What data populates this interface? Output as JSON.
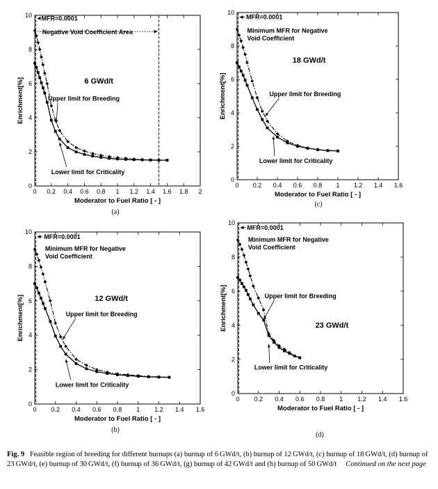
{
  "figure": {
    "caption_label": "Fig. 9",
    "caption_text": "Feasible region of breeding for different burnups (a) burnup of 6 GWd/t, (b) burnup of 12 GWd/t, (c) burnup of 18 GWd/t, (d) burnup of 23 GWd/t, (e) burnup of 30 GWd/t, (f) burnup of 36 GWd/t, (g) burnup of 42 GWd/t and (h) burnup of 50 GWd/t",
    "caption_continued": "Continued on the next page"
  },
  "chart_data": [
    {
      "id": "a",
      "type": "line",
      "panel_label": "(a)",
      "xlabel": "Moderator to Fuel Ratio [ - ]",
      "ylabel": "Enrichment[%]",
      "xlim": [
        0,
        2
      ],
      "ylim": [
        0,
        10
      ],
      "xticks": [
        "0",
        "0.2",
        "0.4",
        "0.6",
        "0.8",
        "1",
        "1.2",
        "1.4",
        "1.6",
        "1.8",
        "2"
      ],
      "yticks": [
        "0",
        "2",
        "4",
        "6",
        "8",
        "10"
      ],
      "burnup_label": "6 GWd/t",
      "mfr_label": "MFR=0.0001",
      "note_lines": [
        "Negative Void Coefficient Area"
      ],
      "right_boundary_x": 1.5,
      "upper_label": "Upper limit for Breeding",
      "lower_label": "Lower limit for Criticality",
      "series": [
        {
          "role": "upper",
          "x": [
            0.0001,
            0.02,
            0.04,
            0.06,
            0.08,
            0.1,
            0.12,
            0.15,
            0.2,
            0.25,
            0.3,
            0.4,
            0.5,
            0.6,
            0.7,
            0.8,
            0.9,
            1.0,
            1.1,
            1.2,
            1.3,
            1.4,
            1.5,
            1.6
          ],
          "y": [
            9.1,
            8.8,
            8.4,
            8.0,
            7.55,
            7.1,
            6.6,
            6.0,
            4.7,
            3.85,
            3.25,
            2.6,
            2.25,
            2.05,
            1.9,
            1.8,
            1.72,
            1.66,
            1.62,
            1.58,
            1.55,
            1.53,
            1.52,
            1.51
          ]
        },
        {
          "role": "lower",
          "x": [
            0.0001,
            0.02,
            0.04,
            0.06,
            0.08,
            0.1,
            0.12,
            0.15,
            0.2,
            0.25,
            0.3,
            0.4,
            0.5,
            0.6,
            0.7,
            0.8,
            0.9,
            1.0,
            1.1,
            1.2,
            1.3,
            1.4,
            1.5,
            1.6
          ],
          "y": [
            7.2,
            6.95,
            6.65,
            6.35,
            6.05,
            5.75,
            5.45,
            4.9,
            3.85,
            3.2,
            2.75,
            2.25,
            2.0,
            1.85,
            1.75,
            1.68,
            1.62,
            1.58,
            1.56,
            1.54,
            1.53,
            1.52,
            1.51,
            1.51
          ]
        }
      ]
    },
    {
      "id": "c",
      "type": "line",
      "panel_label": "(c)",
      "xlabel": "Moderator to Fuel Ratio [ - ]",
      "ylabel": "Enrichment[%]",
      "xlim": [
        0,
        1.6
      ],
      "ylim": [
        0,
        10
      ],
      "xticks": [
        "0",
        "0.2",
        "0.4",
        "0.6",
        "0.8",
        "1",
        "1.2",
        "1.4",
        "1.6"
      ],
      "yticks": [
        "0",
        "2",
        "4",
        "6",
        "8",
        "10"
      ],
      "burnup_label": "18 GWd/t",
      "mfr_label": "MFR=0.0001",
      "note_lines": [
        "Minimum MFR for Negative",
        "Void Coefficient"
      ],
      "upper_label": "Upper limit for Breeding",
      "lower_label": "Lower limit for Criticality",
      "series": [
        {
          "role": "upper",
          "x": [
            0.0001,
            0.02,
            0.04,
            0.06,
            0.08,
            0.1,
            0.15,
            0.2,
            0.25,
            0.3,
            0.4,
            0.5,
            0.6,
            0.7,
            0.8,
            0.9,
            1.0
          ],
          "y": [
            9.0,
            8.65,
            8.3,
            7.9,
            7.5,
            7.0,
            5.9,
            4.9,
            4.1,
            3.5,
            2.75,
            2.3,
            2.05,
            1.9,
            1.8,
            1.75,
            1.72
          ]
        },
        {
          "role": "lower",
          "x": [
            0.0001,
            0.02,
            0.04,
            0.06,
            0.08,
            0.1,
            0.15,
            0.2,
            0.25,
            0.3,
            0.4,
            0.5,
            0.6,
            0.7,
            0.8,
            0.9,
            1.0
          ],
          "y": [
            7.0,
            6.75,
            6.5,
            6.25,
            5.95,
            5.65,
            4.9,
            4.2,
            3.6,
            3.1,
            2.55,
            2.2,
            2.0,
            1.88,
            1.8,
            1.74,
            1.72
          ]
        }
      ]
    },
    {
      "id": "b",
      "type": "line",
      "panel_label": "(b)",
      "xlabel": "Moderator to Fuel Ratio [ - ]",
      "ylabel": "Enrichment[%]",
      "xlim": [
        0,
        1.6
      ],
      "ylim": [
        0,
        10
      ],
      "xticks": [
        "0",
        "0.2",
        "0.4",
        "0.6",
        "0.8",
        "1",
        "1.2",
        "1.4",
        "1.6"
      ],
      "yticks": [
        "0",
        "2",
        "4",
        "6",
        "8",
        "10"
      ],
      "burnup_label": "12 GWd/t",
      "mfr_label": "MFR=0.0001",
      "note_lines": [
        "Minimum MFR for Negative",
        "Void Coefficient"
      ],
      "upper_label": "Upper limit for Breeding",
      "lower_label": "Lower limit for Criticality",
      "series": [
        {
          "role": "upper",
          "x": [
            0.0001,
            0.02,
            0.04,
            0.06,
            0.08,
            0.1,
            0.15,
            0.2,
            0.25,
            0.3,
            0.4,
            0.5,
            0.6,
            0.7,
            0.8,
            0.9,
            1.0,
            1.1,
            1.2,
            1.3
          ],
          "y": [
            9.0,
            8.7,
            8.35,
            7.95,
            7.55,
            7.1,
            6.0,
            4.7,
            3.9,
            3.35,
            2.6,
            2.25,
            2.0,
            1.85,
            1.75,
            1.7,
            1.65,
            1.6,
            1.58,
            1.56
          ]
        },
        {
          "role": "lower",
          "x": [
            0.0001,
            0.02,
            0.04,
            0.06,
            0.08,
            0.1,
            0.15,
            0.2,
            0.25,
            0.3,
            0.4,
            0.5,
            0.6,
            0.7,
            0.8,
            0.9,
            1.0,
            1.1,
            1.2,
            1.3
          ],
          "y": [
            7.0,
            6.75,
            6.45,
            6.15,
            5.85,
            5.55,
            4.8,
            3.95,
            3.35,
            2.9,
            2.35,
            2.05,
            1.88,
            1.78,
            1.7,
            1.65,
            1.61,
            1.58,
            1.56,
            1.55
          ]
        }
      ]
    },
    {
      "id": "d",
      "type": "line",
      "panel_label": "(d)",
      "xlabel": "Moderator to Fuel Ratio [ - ]",
      "ylabel": "Enrichment[%]",
      "xlim": [
        0,
        1.6
      ],
      "ylim": [
        0,
        10
      ],
      "xticks": [
        "0",
        "0.2",
        "0.4",
        "0.6",
        "0.8",
        "1",
        "1.2",
        "1.4",
        "1.6"
      ],
      "yticks": [
        "0",
        "2",
        "4",
        "6",
        "8",
        "10"
      ],
      "burnup_label": "23 GWd/t",
      "mfr_label": "MFR=0.0001",
      "note_lines": [
        "Minimum MFR for Negative",
        "Void Coefficient"
      ],
      "upper_label": "Upper limit for Breeding",
      "lower_label": "Lower limit for Criticality",
      "series": [
        {
          "role": "upper",
          "x": [
            0.0001,
            0.02,
            0.04,
            0.06,
            0.08,
            0.1,
            0.12,
            0.15,
            0.2,
            0.25,
            0.3,
            0.35,
            0.4,
            0.45,
            0.5,
            0.55,
            0.6
          ],
          "y": [
            9.0,
            8.75,
            8.45,
            8.1,
            7.7,
            7.3,
            6.9,
            6.3,
            5.6,
            4.9,
            3.5,
            3.1,
            2.8,
            2.6,
            2.4,
            2.2,
            2.1
          ]
        },
        {
          "role": "lower",
          "x": [
            0.0001,
            0.02,
            0.04,
            0.06,
            0.08,
            0.1,
            0.12,
            0.15,
            0.2,
            0.25,
            0.3,
            0.35,
            0.4,
            0.45,
            0.5,
            0.55,
            0.6
          ],
          "y": [
            6.8,
            6.65,
            6.45,
            6.25,
            6.05,
            5.8,
            5.55,
            5.2,
            4.7,
            4.3,
            3.4,
            3.0,
            2.7,
            2.5,
            2.35,
            2.2,
            2.1
          ]
        }
      ]
    }
  ]
}
